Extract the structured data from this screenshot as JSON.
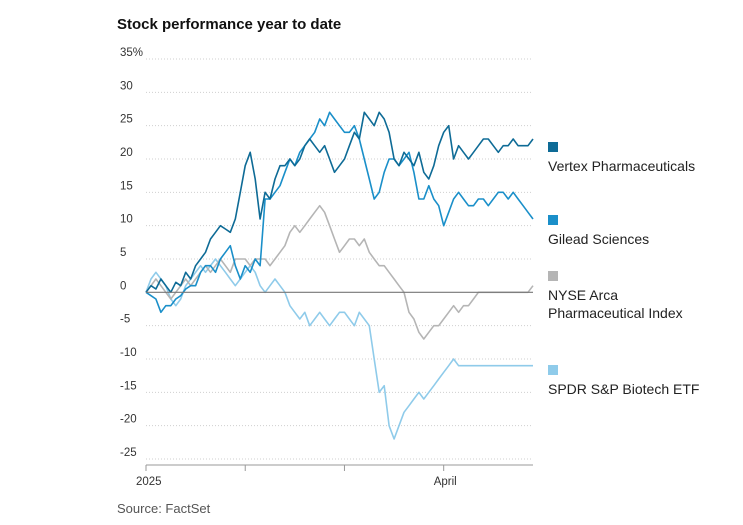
{
  "chart_data": {
    "type": "line",
    "title": "Stock performance year to date",
    "source": "Source: FactSet",
    "ylim": [
      -25,
      35
    ],
    "yticks": [
      {
        "value": 35,
        "label": "35%"
      },
      {
        "value": 30,
        "label": "30"
      },
      {
        "value": 25,
        "label": "25"
      },
      {
        "value": 20,
        "label": "20"
      },
      {
        "value": 15,
        "label": "15"
      },
      {
        "value": 10,
        "label": "10"
      },
      {
        "value": 5,
        "label": "5"
      },
      {
        "value": 0,
        "label": "0"
      },
      {
        "value": -5,
        "label": "-5"
      },
      {
        "value": -10,
        "label": "-10"
      },
      {
        "value": -15,
        "label": "-15"
      },
      {
        "value": -20,
        "label": "-20"
      },
      {
        "value": -25,
        "label": "-25"
      }
    ],
    "x_tick_labels": [
      {
        "label": "2025",
        "day": 0
      },
      {
        "label": "April",
        "day": 60
      }
    ],
    "x_minor_ticks": [
      20,
      40,
      60
    ],
    "x_domain": [
      0,
      78
    ],
    "series": [
      {
        "name": "Vertex Pharmaceuticals",
        "color": "#0e6b96",
        "values": [
          0,
          1,
          0.5,
          2,
          1,
          0,
          1.5,
          1,
          3,
          2,
          4,
          5,
          6,
          8,
          9,
          10,
          9.5,
          9,
          11,
          15,
          19,
          21,
          17,
          11,
          15,
          14,
          17,
          19,
          19,
          20,
          19,
          20,
          22,
          23,
          22,
          21,
          22,
          20,
          18,
          19,
          20,
          22,
          24,
          23,
          27,
          26,
          25,
          27,
          26,
          24,
          20,
          19,
          21,
          20,
          19,
          21,
          18,
          17,
          19,
          22,
          24,
          25,
          20,
          22,
          21,
          20,
          21,
          22,
          23,
          23,
          22,
          21,
          22,
          22,
          23,
          22,
          22,
          22,
          23
        ]
      },
      {
        "name": "Gilead Sciences",
        "color": "#1a8fc9",
        "values": [
          0,
          -0.5,
          -1,
          -3,
          -2,
          -2,
          -1,
          -0.5,
          0.5,
          1,
          1,
          3,
          4,
          4,
          3,
          5,
          6,
          7,
          4,
          2,
          4,
          3,
          5,
          4,
          14,
          14,
          15,
          16,
          18,
          20,
          19,
          21,
          22,
          23,
          24,
          26,
          25,
          27,
          26,
          25,
          24,
          24,
          25,
          23,
          20,
          17,
          14,
          15,
          18,
          20,
          20,
          19,
          20,
          21,
          18,
          14,
          14,
          16,
          14,
          13,
          10,
          12,
          14,
          15,
          14,
          13,
          13,
          14,
          14,
          13,
          14,
          15,
          15,
          14,
          15,
          14,
          13,
          12,
          11
        ]
      },
      {
        "name": "NYSE Arca Pharmaceutical Index",
        "color": "#b5b5b5",
        "values": [
          0,
          1,
          2,
          1,
          0,
          -1,
          0,
          1,
          2,
          1,
          2,
          3,
          4,
          3,
          4,
          5,
          4,
          3,
          5,
          5,
          5,
          4,
          5,
          5,
          5,
          4,
          5,
          6,
          7,
          9,
          10,
          9,
          10,
          11,
          12,
          13,
          12,
          10,
          8,
          6,
          7,
          8,
          8,
          7,
          8,
          6,
          5,
          4,
          4,
          3,
          2,
          1,
          0,
          -3,
          -4,
          -6,
          -7,
          -6,
          -5,
          -5,
          -4,
          -3,
          -2,
          -3,
          -2,
          -2,
          -1,
          0,
          0,
          0,
          0,
          0,
          0,
          0,
          0,
          0,
          0,
          0,
          1
        ]
      },
      {
        "name": "SPDR S&P Biotech ETF",
        "color": "#8fcbea",
        "values": [
          0,
          2,
          3,
          2,
          1,
          -1,
          -2,
          -1,
          1,
          2,
          3,
          4,
          3,
          4,
          5,
          4,
          3,
          2,
          1,
          2,
          3,
          4,
          3,
          1,
          0,
          1,
          2,
          1,
          0,
          -2,
          -3,
          -4,
          -3,
          -5,
          -4,
          -3,
          -4,
          -5,
          -4,
          -3,
          -3,
          -4,
          -5,
          -3,
          -4,
          -5,
          -10,
          -15,
          -14,
          -20,
          -22,
          -20,
          -18,
          -17,
          -16,
          -15,
          -16,
          -15,
          -14,
          -13,
          -12,
          -11,
          -10,
          -11,
          -11,
          -11,
          -11,
          -11,
          -11,
          -11,
          -11,
          -11,
          -11,
          -11,
          -11,
          -11,
          -11,
          -11,
          -11
        ]
      }
    ],
    "legend": [
      "Vertex Pharmaceuticals",
      "Gilead Sciences",
      "NYSE Arca Pharmaceutical Index",
      "SPDR S&P Biotech ETF"
    ],
    "legend_lines": [
      [
        "Vertex Pharmaceuticals"
      ],
      [
        "Gilead Sciences"
      ],
      [
        "NYSE Arca",
        "Pharmaceutical Index"
      ],
      [
        "SPDR S&P Biotech ETF"
      ]
    ]
  }
}
